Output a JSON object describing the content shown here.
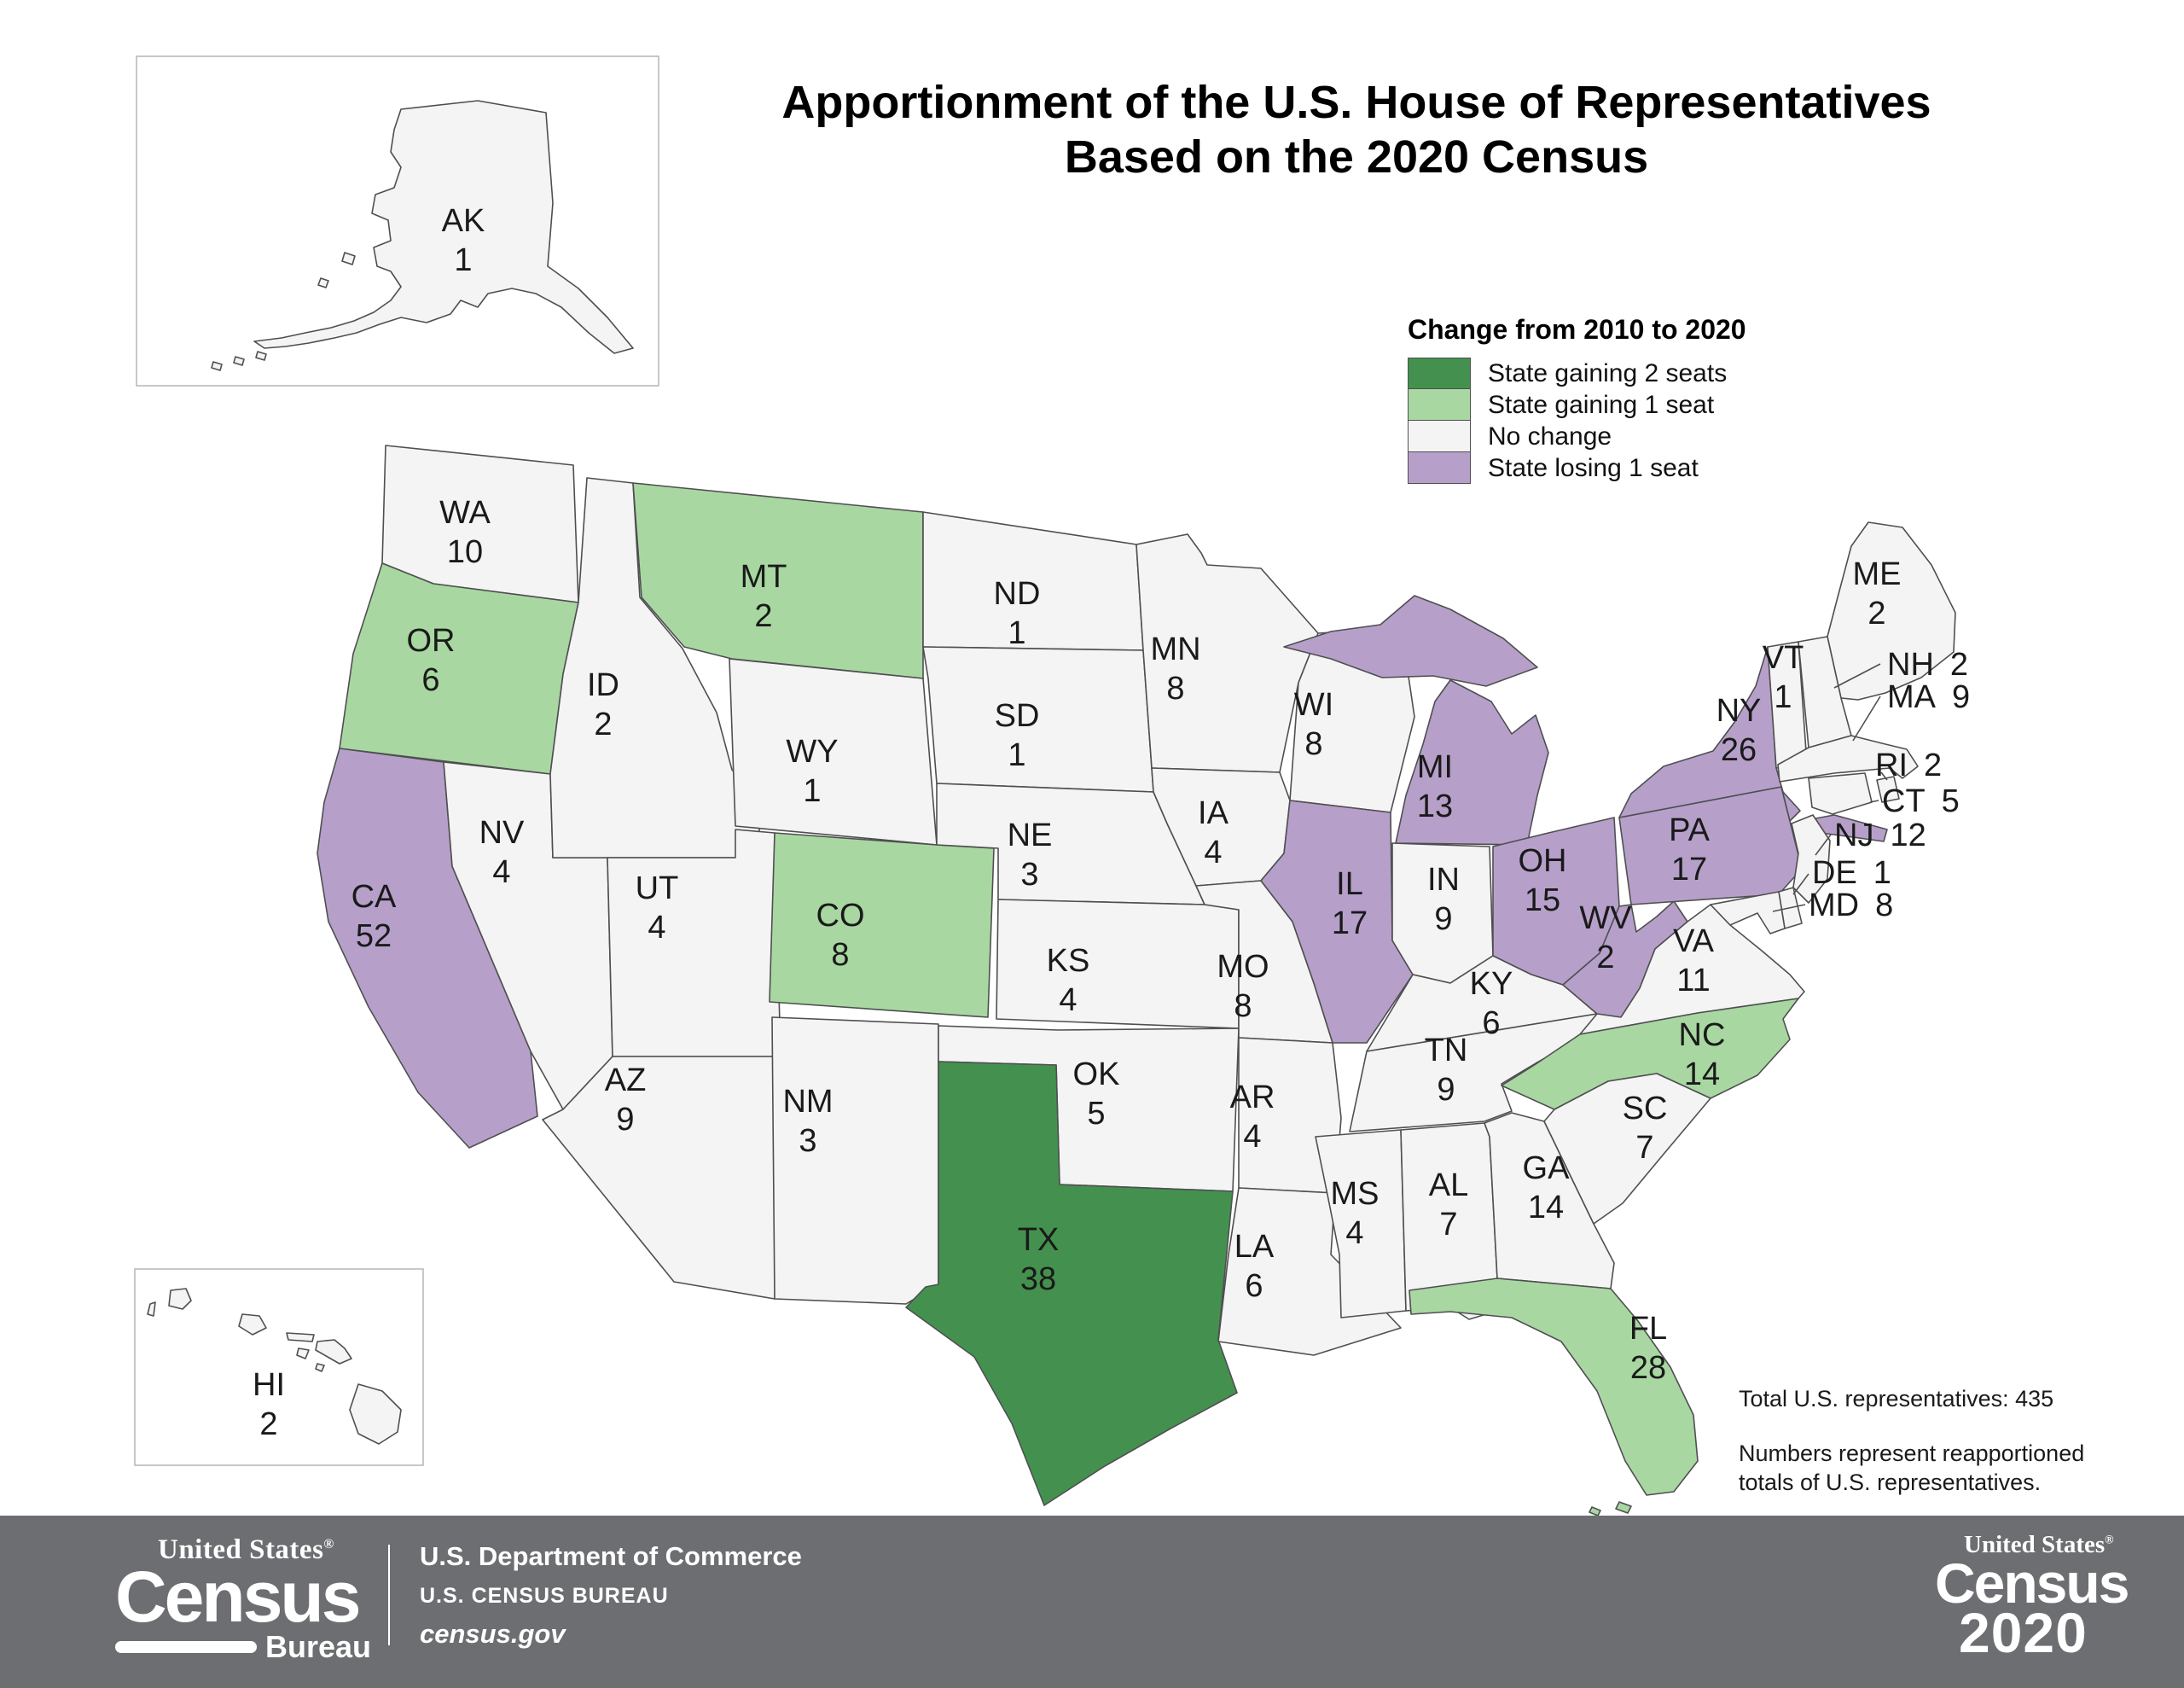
{
  "title": {
    "line1": "Apportionment of the U.S. House of Representatives",
    "line2": "Based on the 2020 Census"
  },
  "legend": {
    "title": "Change from 2010 to 2020",
    "colors": {
      "gain2": "#44914f",
      "gain1": "#a9d7a2",
      "none": "#f4f4f4",
      "lose1": "#b6a0ca"
    },
    "items": [
      {
        "key": "gain2",
        "label": "State gaining 2 seats"
      },
      {
        "key": "gain1",
        "label": "State gaining 1 seat"
      },
      {
        "key": "none",
        "label": "No change"
      },
      {
        "key": "lose1",
        "label": "State losing 1 seat"
      }
    ]
  },
  "map": {
    "states": [
      {
        "id": "AK",
        "abbr": "AK",
        "seats": "1",
        "change": "none"
      },
      {
        "id": "HI",
        "abbr": "HI",
        "seats": "2",
        "change": "none"
      },
      {
        "id": "WA",
        "abbr": "WA",
        "seats": "10",
        "change": "none"
      },
      {
        "id": "OR",
        "abbr": "OR",
        "seats": "6",
        "change": "gain1"
      },
      {
        "id": "CA",
        "abbr": "CA",
        "seats": "52",
        "change": "lose1"
      },
      {
        "id": "NV",
        "abbr": "NV",
        "seats": "4",
        "change": "none"
      },
      {
        "id": "ID",
        "abbr": "ID",
        "seats": "2",
        "change": "none"
      },
      {
        "id": "MT",
        "abbr": "MT",
        "seats": "2",
        "change": "gain1"
      },
      {
        "id": "WY",
        "abbr": "WY",
        "seats": "1",
        "change": "none"
      },
      {
        "id": "UT",
        "abbr": "UT",
        "seats": "4",
        "change": "none"
      },
      {
        "id": "CO",
        "abbr": "CO",
        "seats": "8",
        "change": "gain1"
      },
      {
        "id": "AZ",
        "abbr": "AZ",
        "seats": "9",
        "change": "none"
      },
      {
        "id": "NM",
        "abbr": "NM",
        "seats": "3",
        "change": "none"
      },
      {
        "id": "ND",
        "abbr": "ND",
        "seats": "1",
        "change": "none"
      },
      {
        "id": "SD",
        "abbr": "SD",
        "seats": "1",
        "change": "none"
      },
      {
        "id": "NE",
        "abbr": "NE",
        "seats": "3",
        "change": "none"
      },
      {
        "id": "KS",
        "abbr": "KS",
        "seats": "4",
        "change": "none"
      },
      {
        "id": "OK",
        "abbr": "OK",
        "seats": "5",
        "change": "none"
      },
      {
        "id": "TX",
        "abbr": "TX",
        "seats": "38",
        "change": "gain2"
      },
      {
        "id": "MN",
        "abbr": "MN",
        "seats": "8",
        "change": "none"
      },
      {
        "id": "IA",
        "abbr": "IA",
        "seats": "4",
        "change": "none"
      },
      {
        "id": "MO",
        "abbr": "MO",
        "seats": "8",
        "change": "none"
      },
      {
        "id": "AR",
        "abbr": "AR",
        "seats": "4",
        "change": "none"
      },
      {
        "id": "LA",
        "abbr": "LA",
        "seats": "6",
        "change": "none"
      },
      {
        "id": "WI",
        "abbr": "WI",
        "seats": "8",
        "change": "none"
      },
      {
        "id": "IL",
        "abbr": "IL",
        "seats": "17",
        "change": "lose1"
      },
      {
        "id": "MS",
        "abbr": "MS",
        "seats": "4",
        "change": "none"
      },
      {
        "id": "MI",
        "abbr": "MI",
        "seats": "13",
        "change": "lose1"
      },
      {
        "id": "IN",
        "abbr": "IN",
        "seats": "9",
        "change": "none"
      },
      {
        "id": "OH",
        "abbr": "OH",
        "seats": "15",
        "change": "lose1"
      },
      {
        "id": "KY",
        "abbr": "KY",
        "seats": "6",
        "change": "none"
      },
      {
        "id": "TN",
        "abbr": "TN",
        "seats": "9",
        "change": "none"
      },
      {
        "id": "AL",
        "abbr": "AL",
        "seats": "7",
        "change": "none"
      },
      {
        "id": "GA",
        "abbr": "GA",
        "seats": "14",
        "change": "none"
      },
      {
        "id": "WV",
        "abbr": "WV",
        "seats": "2",
        "change": "lose1"
      },
      {
        "id": "VA",
        "abbr": "VA",
        "seats": "11",
        "change": "none"
      },
      {
        "id": "NC",
        "abbr": "NC",
        "seats": "14",
        "change": "gain1"
      },
      {
        "id": "SC",
        "abbr": "SC",
        "seats": "7",
        "change": "none"
      },
      {
        "id": "FL",
        "abbr": "FL",
        "seats": "28",
        "change": "gain1"
      },
      {
        "id": "PA",
        "abbr": "PA",
        "seats": "17",
        "change": "lose1"
      },
      {
        "id": "NY",
        "abbr": "NY",
        "seats": "26",
        "change": "lose1"
      },
      {
        "id": "VT",
        "abbr": "VT",
        "seats": "1",
        "change": "none"
      },
      {
        "id": "ME",
        "abbr": "ME",
        "seats": "2",
        "change": "none"
      },
      {
        "id": "NH",
        "abbr": "NH",
        "seats": "2",
        "change": "none",
        "external": true
      },
      {
        "id": "MA",
        "abbr": "MA",
        "seats": "9",
        "change": "none",
        "external": true
      },
      {
        "id": "RI",
        "abbr": "RI",
        "seats": "2",
        "change": "none",
        "external": true
      },
      {
        "id": "CT",
        "abbr": "CT",
        "seats": "5",
        "change": "none",
        "external": true
      },
      {
        "id": "NJ",
        "abbr": "NJ",
        "seats": "12",
        "change": "none",
        "external": true
      },
      {
        "id": "DE",
        "abbr": "DE",
        "seats": "1",
        "change": "none",
        "external": true
      },
      {
        "id": "MD",
        "abbr": "MD",
        "seats": "8",
        "change": "none",
        "external": true
      }
    ]
  },
  "notes": {
    "total": "Total U.S. representatives: 435",
    "line1": "Numbers represent reapportioned",
    "line2": "totals of U.S. representatives."
  },
  "footer": {
    "brand_top": "United States",
    "brand_reg": "®",
    "brand_main": "Census",
    "brand_sub": "Bureau",
    "dept_line1": "U.S. Department of Commerce",
    "dept_line2": "U.S. CENSUS BUREAU",
    "dept_line3": "census.gov",
    "c2020_top": "United States",
    "c2020_reg": "®",
    "c2020_main": "Census",
    "c2020_year": "2020"
  }
}
